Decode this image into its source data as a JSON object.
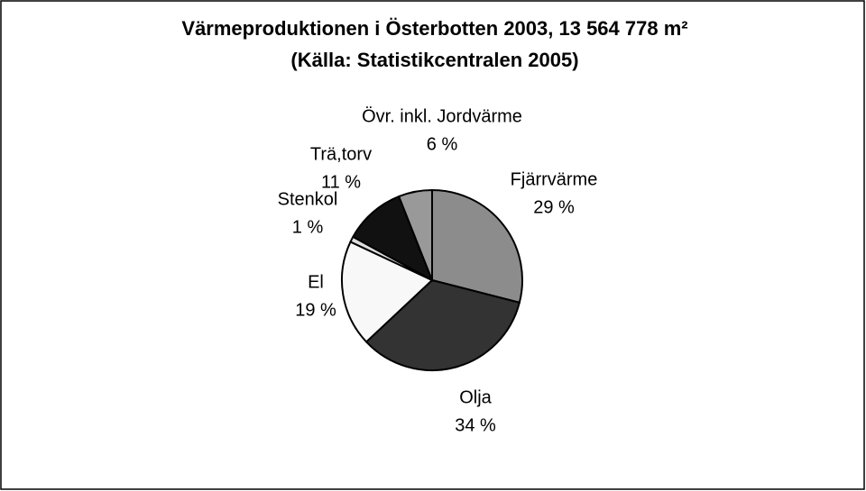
{
  "chart_data": {
    "type": "pie",
    "title": "Värmeproduktionen i Österbotten 2003, 13 564 778 m²",
    "subtitle": "(Källa: Statistikcentralen 2005)",
    "categories": [
      "Fjärrvärme",
      "Olja",
      "El",
      "Stenkol",
      "Trä,torv",
      "Övr. inkl. Jordvärme"
    ],
    "values": [
      29,
      34,
      19,
      1,
      11,
      6
    ],
    "value_labels": [
      "29 %",
      "34 %",
      "19 %",
      "1 %",
      "11 %",
      "6 %"
    ],
    "colors": [
      "#8c8c8c",
      "#333333",
      "#f8f8f8",
      "#dddddd",
      "#111111",
      "#999999"
    ]
  }
}
